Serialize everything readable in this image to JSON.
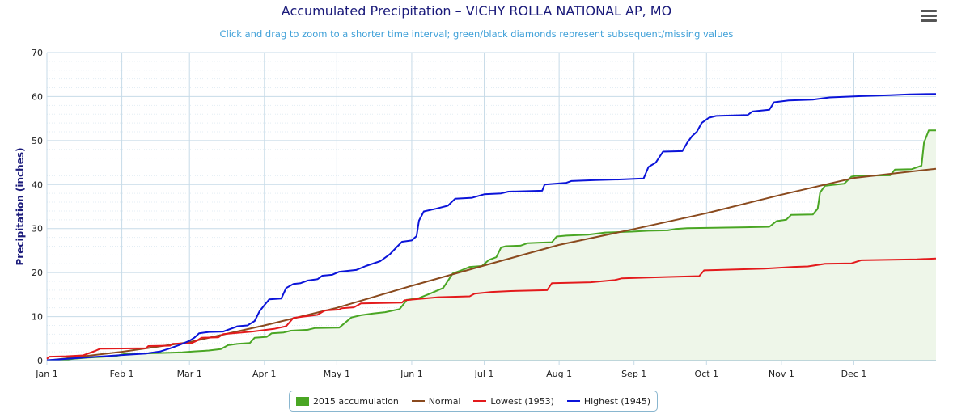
{
  "header": {
    "title": "Accumulated Precipitation – VICHY ROLLA NATIONAL AP, MO",
    "subtitle": "Click and drag to zoom to a shorter time interval; green/black diamonds represent subsequent/missing values",
    "menu_icon": "hamburger-menu-icon"
  },
  "colors": {
    "accumulation": "#4aa624",
    "accumulation_fill": "#eef6e9",
    "normal": "#8a4a1e",
    "lowest": "#e31a1c",
    "highest": "#0b14d9",
    "grid": "#c7dbe8",
    "axis_text": "#222222",
    "title": "#1a1a7a",
    "subtitle": "#3fa0d8"
  },
  "chart_data": {
    "type": "line",
    "x_axis": "day of year",
    "ylabel": "Precipitation (inches)",
    "xlabel": "",
    "ylim": [
      0,
      70
    ],
    "yticks": [
      0,
      10,
      20,
      30,
      40,
      50,
      60,
      70
    ],
    "xticks": [
      {
        "label": "Jan 1",
        "day": 1
      },
      {
        "label": "Feb 1",
        "day": 32
      },
      {
        "label": "Mar 1",
        "day": 60
      },
      {
        "label": "Apr 1",
        "day": 91
      },
      {
        "label": "May 1",
        "day": 121
      },
      {
        "label": "Jun 1",
        "day": 152
      },
      {
        "label": "Jul 1",
        "day": 182
      },
      {
        "label": "Aug 1",
        "day": 213
      },
      {
        "label": "Sep 1",
        "day": 244
      },
      {
        "label": "Oct 1",
        "day": 274
      },
      {
        "label": "Nov 1",
        "day": 305
      },
      {
        "label": "Dec 1",
        "day": 335
      }
    ],
    "grid": true,
    "legend_position": "bottom-center",
    "series": [
      {
        "name": "2015 accumulation",
        "key": "accumulation",
        "style": "area",
        "points": [
          [
            1,
            0
          ],
          [
            7,
            0.1
          ],
          [
            12,
            0.4
          ],
          [
            18,
            0.7
          ],
          [
            25,
            0.9
          ],
          [
            30,
            1.1
          ],
          [
            33,
            1.5
          ],
          [
            40,
            1.6
          ],
          [
            46,
            1.7
          ],
          [
            52,
            1.8
          ],
          [
            57,
            1.9
          ],
          [
            62,
            2.1
          ],
          [
            68,
            2.3
          ],
          [
            73,
            2.6
          ],
          [
            76,
            3.5
          ],
          [
            80,
            3.8
          ],
          [
            85,
            4.0
          ],
          [
            87,
            5.2
          ],
          [
            92,
            5.4
          ],
          [
            94,
            6.2
          ],
          [
            99,
            6.4
          ],
          [
            102,
            6.8
          ],
          [
            109,
            7.0
          ],
          [
            112,
            7.4
          ],
          [
            122,
            7.5
          ],
          [
            127,
            9.8
          ],
          [
            131,
            10.3
          ],
          [
            136,
            10.7
          ],
          [
            141,
            11.0
          ],
          [
            147,
            11.7
          ],
          [
            150,
            13.8
          ],
          [
            155,
            14.2
          ],
          [
            160,
            15.3
          ],
          [
            165,
            16.5
          ],
          [
            169,
            19.8
          ],
          [
            172,
            20.4
          ],
          [
            176,
            21.3
          ],
          [
            181,
            21.5
          ],
          [
            184,
            22.9
          ],
          [
            187,
            23.5
          ],
          [
            189,
            25.7
          ],
          [
            191,
            26.0
          ],
          [
            197,
            26.1
          ],
          [
            200,
            26.7
          ],
          [
            205,
            26.8
          ],
          [
            210,
            26.9
          ],
          [
            212,
            28.2
          ],
          [
            216,
            28.4
          ],
          [
            225,
            28.6
          ],
          [
            232,
            29.1
          ],
          [
            243,
            29.3
          ],
          [
            250,
            29.5
          ],
          [
            258,
            29.6
          ],
          [
            261,
            29.9
          ],
          [
            266,
            30.1
          ],
          [
            290,
            30.3
          ],
          [
            300,
            30.4
          ],
          [
            303,
            31.7
          ],
          [
            307,
            32.0
          ],
          [
            309,
            33.1
          ],
          [
            318,
            33.2
          ],
          [
            320,
            34.5
          ],
          [
            321,
            38.2
          ],
          [
            323,
            39.7
          ],
          [
            326,
            39.9
          ],
          [
            331,
            40.2
          ],
          [
            334,
            41.8
          ],
          [
            336,
            42.0
          ],
          [
            350,
            42.1
          ],
          [
            352,
            43.4
          ],
          [
            359,
            43.5
          ],
          [
            361,
            43.9
          ],
          [
            363,
            44.3
          ],
          [
            364,
            49.5
          ],
          [
            366,
            52.3
          ],
          [
            369,
            52.3
          ]
        ]
      },
      {
        "name": "Normal",
        "key": "normal",
        "style": "line",
        "points": [
          [
            1,
            0
          ],
          [
            32,
            2.0
          ],
          [
            60,
            4.2
          ],
          [
            91,
            8.0
          ],
          [
            121,
            12.0
          ],
          [
            152,
            17.0
          ],
          [
            182,
            21.6
          ],
          [
            213,
            26.3
          ],
          [
            244,
            29.9
          ],
          [
            274,
            33.5
          ],
          [
            305,
            37.7
          ],
          [
            335,
            41.5
          ],
          [
            369,
            43.6
          ]
        ]
      },
      {
        "name": "Lowest (1953)",
        "key": "lowest",
        "style": "line",
        "points": [
          [
            1,
            0.4
          ],
          [
            2,
            0.9
          ],
          [
            9,
            1.0
          ],
          [
            16,
            1.2
          ],
          [
            21,
            2.2
          ],
          [
            23,
            2.7
          ],
          [
            42,
            2.8
          ],
          [
            43,
            3.3
          ],
          [
            52,
            3.4
          ],
          [
            53,
            3.8
          ],
          [
            61,
            4.0
          ],
          [
            63,
            4.5
          ],
          [
            65,
            5.2
          ],
          [
            72,
            5.3
          ],
          [
            74,
            6.0
          ],
          [
            86,
            6.6
          ],
          [
            95,
            7.2
          ],
          [
            100,
            7.8
          ],
          [
            103,
            9.7
          ],
          [
            107,
            10.0
          ],
          [
            113,
            10.4
          ],
          [
            116,
            11.4
          ],
          [
            122,
            11.6
          ],
          [
            123,
            11.9
          ],
          [
            128,
            12.1
          ],
          [
            131,
            13.0
          ],
          [
            148,
            13.2
          ],
          [
            149,
            13.7
          ],
          [
            163,
            14.4
          ],
          [
            176,
            14.6
          ],
          [
            178,
            15.2
          ],
          [
            185,
            15.6
          ],
          [
            193,
            15.8
          ],
          [
            208,
            16.0
          ],
          [
            210,
            17.6
          ],
          [
            226,
            17.8
          ],
          [
            236,
            18.3
          ],
          [
            239,
            18.7
          ],
          [
            257,
            19.0
          ],
          [
            271,
            19.2
          ],
          [
            273,
            20.5
          ],
          [
            298,
            20.9
          ],
          [
            301,
            21.0
          ],
          [
            310,
            21.3
          ],
          [
            316,
            21.4
          ],
          [
            323,
            22.0
          ],
          [
            334,
            22.1
          ],
          [
            338,
            22.8
          ],
          [
            361,
            23.0
          ],
          [
            369,
            23.2
          ]
        ]
      },
      {
        "name": "Highest (1945)",
        "key": "highest",
        "style": "line",
        "points": [
          [
            1,
            0.1
          ],
          [
            30,
            1.2
          ],
          [
            42,
            1.6
          ],
          [
            48,
            2.1
          ],
          [
            52,
            2.8
          ],
          [
            56,
            3.6
          ],
          [
            60,
            4.5
          ],
          [
            62,
            5.2
          ],
          [
            64,
            6.2
          ],
          [
            68,
            6.5
          ],
          [
            74,
            6.6
          ],
          [
            80,
            7.8
          ],
          [
            84,
            8.0
          ],
          [
            87,
            9.0
          ],
          [
            89,
            11.2
          ],
          [
            91,
            12.6
          ],
          [
            93,
            13.9
          ],
          [
            98,
            14.1
          ],
          [
            100,
            16.5
          ],
          [
            103,
            17.4
          ],
          [
            106,
            17.6
          ],
          [
            109,
            18.2
          ],
          [
            113,
            18.5
          ],
          [
            115,
            19.3
          ],
          [
            119,
            19.5
          ],
          [
            122,
            20.2
          ],
          [
            129,
            20.6
          ],
          [
            133,
            21.5
          ],
          [
            139,
            22.6
          ],
          [
            143,
            24.2
          ],
          [
            146,
            25.9
          ],
          [
            148,
            27.0
          ],
          [
            152,
            27.3
          ],
          [
            154,
            28.3
          ],
          [
            155,
            31.8
          ],
          [
            157,
            33.9
          ],
          [
            162,
            34.5
          ],
          [
            167,
            35.2
          ],
          [
            170,
            36.8
          ],
          [
            177,
            37.0
          ],
          [
            182,
            37.8
          ],
          [
            189,
            38.0
          ],
          [
            192,
            38.4
          ],
          [
            206,
            38.6
          ],
          [
            207,
            40.0
          ],
          [
            216,
            40.4
          ],
          [
            218,
            40.8
          ],
          [
            228,
            41.0
          ],
          [
            240,
            41.2
          ],
          [
            248,
            41.4
          ],
          [
            250,
            44.0
          ],
          [
            253,
            45.0
          ],
          [
            256,
            47.5
          ],
          [
            264,
            47.6
          ],
          [
            266,
            49.5
          ],
          [
            268,
            51.0
          ],
          [
            270,
            52.0
          ],
          [
            272,
            54.0
          ],
          [
            275,
            55.2
          ],
          [
            278,
            55.6
          ],
          [
            291,
            55.8
          ],
          [
            293,
            56.6
          ],
          [
            300,
            57.0
          ],
          [
            302,
            58.7
          ],
          [
            308,
            59.1
          ],
          [
            318,
            59.3
          ],
          [
            322,
            59.6
          ],
          [
            325,
            59.8
          ],
          [
            338,
            60.1
          ],
          [
            350,
            60.3
          ],
          [
            358,
            60.5
          ],
          [
            369,
            60.6
          ]
        ]
      }
    ]
  },
  "legend": {
    "items": [
      {
        "label": "2015 accumulation",
        "key": "accumulation",
        "swatch": "box"
      },
      {
        "label": "Normal",
        "key": "normal",
        "swatch": "line"
      },
      {
        "label": "Lowest (1953)",
        "key": "lowest",
        "swatch": "line"
      },
      {
        "label": "Highest (1945)",
        "key": "highest",
        "swatch": "line"
      }
    ]
  }
}
